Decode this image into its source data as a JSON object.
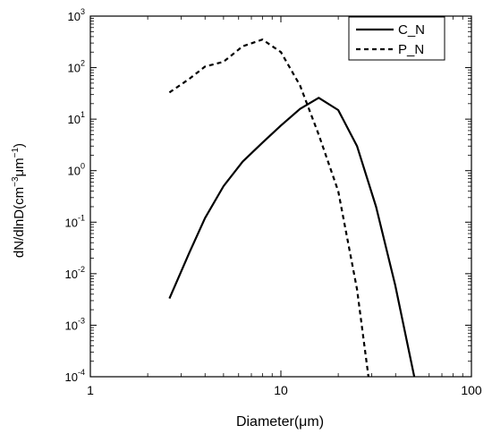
{
  "chart_data": {
    "type": "line",
    "title": "",
    "xlabel": "Diameter(μm)",
    "ylabel_parts": {
      "prefix": "dN/dlnD(cm",
      "sup1": "−3",
      "middle": "μm",
      "sup2": "−1",
      "suffix": ")"
    },
    "x_scale": "log",
    "y_scale": "log",
    "xlim": [
      1,
      100
    ],
    "ylim": [
      0.0001,
      1000
    ],
    "x_ticks": [
      {
        "value": 1,
        "label": "1"
      },
      {
        "value": 10,
        "label": "10"
      },
      {
        "value": 100,
        "label": "100"
      }
    ],
    "y_ticks": [
      {
        "value": 0.0001,
        "base": "10",
        "exp": "-4"
      },
      {
        "value": 0.001,
        "base": "10",
        "exp": "-3"
      },
      {
        "value": 0.01,
        "base": "10",
        "exp": "-2"
      },
      {
        "value": 0.1,
        "base": "10",
        "exp": "-1"
      },
      {
        "value": 1,
        "base": "10",
        "exp": "0"
      },
      {
        "value": 10,
        "base": "10",
        "exp": "1"
      },
      {
        "value": 100,
        "base": "10",
        "exp": "2"
      },
      {
        "value": 1000,
        "base": "10",
        "exp": "3"
      }
    ],
    "grid": false,
    "legend_position": "top-right",
    "series": [
      {
        "name": "C_N",
        "style": "solid",
        "color": "#000000",
        "x": [
          2.6,
          3.3,
          4.0,
          5.0,
          6.3,
          8.0,
          10.0,
          12.6,
          15.8,
          20.0,
          25.1,
          31.6,
          39.8,
          50.1
        ],
        "y": [
          0.0033,
          0.025,
          0.12,
          0.5,
          1.5,
          3.5,
          7.5,
          15.8,
          26.0,
          15.0,
          3.0,
          0.2,
          0.006,
          0.0001
        ]
      },
      {
        "name": "P_N",
        "style": "dashed",
        "color": "#000000",
        "x": [
          2.6,
          3.3,
          4.0,
          5.0,
          6.3,
          8.0,
          10.0,
          12.6,
          15.8,
          20.0,
          25.1,
          28.8
        ],
        "y": [
          33,
          60,
          105,
          130,
          260,
          350,
          200,
          45,
          5.0,
          0.4,
          0.005,
          0.0001
        ]
      }
    ]
  }
}
